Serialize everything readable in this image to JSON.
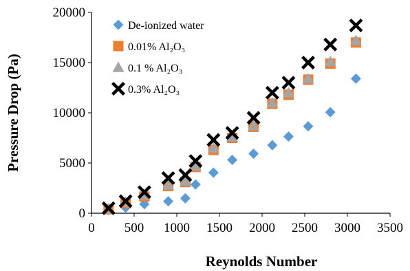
{
  "chart_data": {
    "type": "scatter",
    "title": "",
    "xlabel": "Reynolds Number",
    "ylabel": "Pressure Drop (Pa)",
    "xlim": [
      0,
      3500
    ],
    "ylim": [
      0,
      20000
    ],
    "xticks": [
      "0",
      "500",
      "1000",
      "1500",
      "2000",
      "2500",
      "3000",
      "3500"
    ],
    "yticks": [
      "0",
      "5000",
      "10000",
      "15000",
      "20000"
    ],
    "grid": false,
    "legend": "top-left",
    "series": [
      {
        "name": "De-ionized water",
        "marker": "diamond",
        "color": "#5B9BD5",
        "points": [
          [
            200,
            330
          ],
          [
            400,
            560
          ],
          [
            620,
            900
          ],
          [
            900,
            1190
          ],
          [
            1100,
            1480
          ],
          [
            1220,
            2860
          ],
          [
            1430,
            4040
          ],
          [
            1650,
            5310
          ],
          [
            1900,
            5930
          ],
          [
            2120,
            6770
          ],
          [
            2310,
            7640
          ],
          [
            2540,
            8660
          ],
          [
            2800,
            10060
          ],
          [
            3100,
            13400
          ]
        ]
      },
      {
        "name": "0.01% Al₂O₃",
        "marker": "square",
        "color": "#ED7D31",
        "points": [
          [
            200,
            400
          ],
          [
            400,
            1000
          ],
          [
            620,
            1650
          ],
          [
            900,
            2700
          ],
          [
            1100,
            3100
          ],
          [
            1220,
            4600
          ],
          [
            1430,
            6300
          ],
          [
            1650,
            7500
          ],
          [
            1900,
            8600
          ],
          [
            2120,
            10900
          ],
          [
            2310,
            11800
          ],
          [
            2540,
            13300
          ],
          [
            2800,
            14900
          ],
          [
            3100,
            17000
          ]
        ]
      },
      {
        "name": "0.1 % Al₂O₃",
        "marker": "triangle",
        "color": "#A5A5A5",
        "points": [
          [
            200,
            450
          ],
          [
            400,
            1100
          ],
          [
            620,
            1800
          ],
          [
            900,
            2800
          ],
          [
            1100,
            3200
          ],
          [
            1220,
            4700
          ],
          [
            1430,
            6500
          ],
          [
            1650,
            7600
          ],
          [
            1900,
            8700
          ],
          [
            2120,
            11000
          ],
          [
            2310,
            12000
          ],
          [
            2540,
            13400
          ],
          [
            2800,
            15100
          ],
          [
            3100,
            17200
          ]
        ]
      },
      {
        "name": "0.3% Al₂O₃",
        "marker": "x-shape",
        "color": "#000000",
        "points": [
          [
            200,
            500
          ],
          [
            400,
            1200
          ],
          [
            620,
            2100
          ],
          [
            900,
            3500
          ],
          [
            1100,
            3800
          ],
          [
            1220,
            5200
          ],
          [
            1430,
            7300
          ],
          [
            1650,
            8000
          ],
          [
            1900,
            9500
          ],
          [
            2120,
            12000
          ],
          [
            2310,
            13000
          ],
          [
            2540,
            15000
          ],
          [
            2800,
            16800
          ],
          [
            3100,
            18700
          ]
        ]
      }
    ]
  }
}
